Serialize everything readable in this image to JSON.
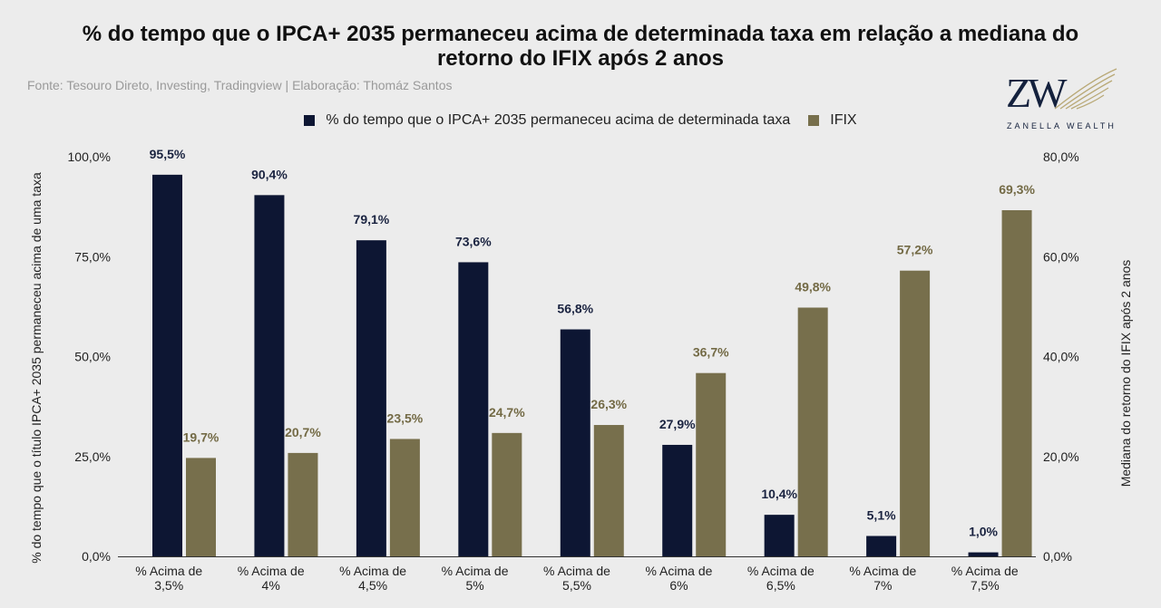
{
  "header": {
    "title_line1": "% do tempo que o IPCA+ 2035 permaneceu acima de determinada taxa em relação a mediana do",
    "title_line2": "retorno do IFIX após 2 anos",
    "source": "Fonte: Tesouro Direto, Investing, Tradingview | Elaboração: Thomáz Santos"
  },
  "logo": {
    "monogram": "ZW",
    "brand": "ZANELLA WEALTH",
    "icon": "wing-icon"
  },
  "colors": {
    "primary_series": "#0d1633",
    "secondary_series": "#776f4c",
    "primary_label": "#1a2340",
    "secondary_label": "#736a45",
    "grid": "#333333",
    "background": "#ececec"
  },
  "chart_data": {
    "type": "bar",
    "title": "% do tempo que o IPCA+ 2035 permaneceu acima de determinada taxa em relação a mediana do retorno do IFIX após 2 anos",
    "categories": [
      [
        "% Acima de",
        "3,5%"
      ],
      [
        "% Acima de",
        "4%"
      ],
      [
        "% Acima de",
        "4,5%"
      ],
      [
        "% Acima de",
        "5%"
      ],
      [
        "% Acima de",
        "5,5%"
      ],
      [
        "% Acima de",
        "6%"
      ],
      [
        "% Acima de",
        "6,5%"
      ],
      [
        "% Acima de",
        "7%"
      ],
      [
        "% Acima de",
        "7,5%"
      ]
    ],
    "series": [
      {
        "name": "% do tempo que o IPCA+ 2035 permaneceu acima de determinada taxa",
        "axis": "left",
        "values": [
          95.5,
          90.4,
          79.1,
          73.6,
          56.8,
          27.9,
          10.4,
          5.1,
          1.0
        ],
        "labels": [
          "95,5%",
          "90,4%",
          "79,1%",
          "73,6%",
          "56,8%",
          "27,9%",
          "10,4%",
          "5,1%",
          "1,0%"
        ]
      },
      {
        "name": "IFIX",
        "axis": "right",
        "values": [
          19.7,
          20.7,
          23.5,
          24.7,
          26.3,
          36.7,
          49.8,
          57.2,
          69.3
        ],
        "labels": [
          "19,7%",
          "20,7%",
          "23,5%",
          "24,7%",
          "26,3%",
          "36,7%",
          "49,8%",
          "57,2%",
          "69,3%"
        ]
      }
    ],
    "y_left": {
      "label": "% do tempo que o título IPCA+ 2035 permaneceu acima de uma taxa",
      "ylim": [
        0,
        100
      ],
      "ticks": [
        0,
        25,
        50,
        75,
        100
      ],
      "tick_labels": [
        "0,0%",
        "25,0%",
        "50,0%",
        "75,0%",
        "100,0%"
      ]
    },
    "y_right": {
      "label": "Mediana do retorno do IFIX após 2 anos",
      "ylim": [
        0,
        80
      ],
      "ticks": [
        0,
        20,
        40,
        60,
        80
      ],
      "tick_labels": [
        "0,0%",
        "20,0%",
        "40,0%",
        "60,0%",
        "80,0%"
      ]
    },
    "legend_position": "top-center",
    "grid": false
  }
}
